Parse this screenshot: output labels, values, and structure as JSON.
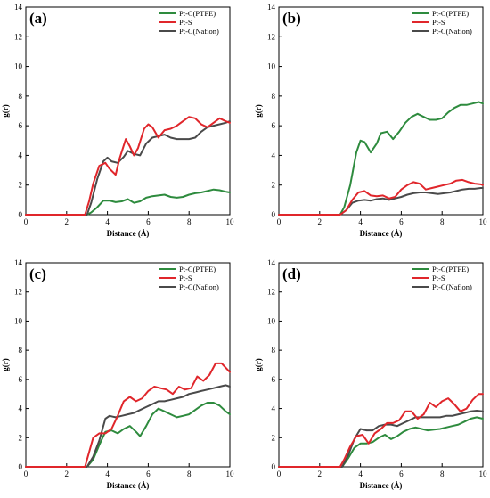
{
  "colors": {
    "ptfe": "#2e8b3e",
    "pts": "#e0262b",
    "nafion": "#4a4a4a"
  },
  "chart_data": [
    {
      "type": "line",
      "panel_label": "(a)",
      "xlabel": "Distance (Å)",
      "ylabel": "g(r)",
      "xlim": [
        0,
        10
      ],
      "ylim": [
        0,
        14
      ],
      "xticks": [
        "0",
        "2",
        "4",
        "6",
        "8",
        "10"
      ],
      "yticks": [
        "0",
        "2",
        "4",
        "6",
        "8",
        "10",
        "12",
        "14"
      ],
      "legend": "top-right",
      "series": [
        {
          "name": "Pt-C(PTFE)",
          "color_key": "ptfe",
          "x": [
            0,
            3.0,
            3.2,
            3.5,
            3.8,
            4.1,
            4.4,
            4.7,
            5.0,
            5.3,
            5.6,
            5.9,
            6.2,
            6.5,
            6.8,
            7.1,
            7.4,
            7.7,
            8.0,
            8.3,
            8.6,
            8.9,
            9.2,
            9.5,
            9.8,
            10.0
          ],
          "y": [
            0,
            0,
            0.15,
            0.5,
            0.95,
            0.95,
            0.85,
            0.9,
            1.05,
            0.8,
            0.9,
            1.15,
            1.25,
            1.3,
            1.35,
            1.2,
            1.15,
            1.2,
            1.35,
            1.45,
            1.5,
            1.6,
            1.7,
            1.65,
            1.55,
            1.5
          ]
        },
        {
          "name": "Pt-S",
          "color_key": "pts",
          "x": [
            0,
            2.9,
            3.1,
            3.3,
            3.6,
            3.9,
            4.1,
            4.4,
            4.6,
            4.9,
            5.1,
            5.3,
            5.5,
            5.8,
            6.0,
            6.2,
            6.5,
            6.8,
            7.1,
            7.4,
            7.7,
            8.0,
            8.3,
            8.6,
            8.9,
            9.2,
            9.5,
            9.8,
            10.0
          ],
          "y": [
            0,
            0,
            0.9,
            2.1,
            3.3,
            3.5,
            3.1,
            2.7,
            3.8,
            5.1,
            4.6,
            4.0,
            4.5,
            5.8,
            6.1,
            5.9,
            5.2,
            5.7,
            5.8,
            6.0,
            6.3,
            6.6,
            6.5,
            6.1,
            5.9,
            6.2,
            6.5,
            6.3,
            6.2
          ]
        },
        {
          "name": "Pt-C(Nafion)",
          "color_key": "nafion",
          "x": [
            0,
            3.0,
            3.2,
            3.5,
            3.8,
            4.0,
            4.2,
            4.5,
            4.8,
            5.0,
            5.3,
            5.6,
            5.9,
            6.2,
            6.5,
            6.8,
            7.1,
            7.4,
            7.7,
            8.0,
            8.3,
            8.6,
            8.9,
            9.2,
            9.5,
            9.8,
            10.0
          ],
          "y": [
            0,
            0,
            0.8,
            2.4,
            3.6,
            3.85,
            3.6,
            3.5,
            3.9,
            4.3,
            4.1,
            4.0,
            4.8,
            5.2,
            5.3,
            5.4,
            5.2,
            5.1,
            5.1,
            5.1,
            5.2,
            5.6,
            5.9,
            6.0,
            6.1,
            6.2,
            6.3
          ]
        }
      ]
    },
    {
      "type": "line",
      "panel_label": "(b)",
      "xlabel": "Distance (Å)",
      "ylabel": "g(r)",
      "xlim": [
        0,
        10
      ],
      "ylim": [
        0,
        14
      ],
      "xticks": [
        "0",
        "2",
        "4",
        "6",
        "8",
        "10"
      ],
      "yticks": [
        "0",
        "2",
        "4",
        "6",
        "8",
        "10",
        "12",
        "14"
      ],
      "legend": "top-right",
      "series": [
        {
          "name": "Pt-C(PTFE)",
          "color_key": "ptfe",
          "x": [
            0,
            3.0,
            3.2,
            3.5,
            3.8,
            4.0,
            4.2,
            4.5,
            4.8,
            5.0,
            5.3,
            5.6,
            5.9,
            6.2,
            6.5,
            6.8,
            7.1,
            7.4,
            7.7,
            8.0,
            8.3,
            8.6,
            8.9,
            9.2,
            9.5,
            9.8,
            10.0
          ],
          "y": [
            0,
            0,
            0.5,
            2.0,
            4.2,
            5.0,
            4.9,
            4.2,
            4.8,
            5.5,
            5.6,
            5.1,
            5.6,
            6.2,
            6.6,
            6.8,
            6.6,
            6.4,
            6.4,
            6.5,
            6.9,
            7.2,
            7.4,
            7.4,
            7.5,
            7.6,
            7.5
          ]
        },
        {
          "name": "Pt-S",
          "color_key": "pts",
          "x": [
            0,
            3.0,
            3.3,
            3.6,
            3.9,
            4.2,
            4.5,
            4.8,
            5.1,
            5.4,
            5.7,
            6.0,
            6.3,
            6.6,
            6.9,
            7.2,
            7.5,
            7.8,
            8.1,
            8.4,
            8.7,
            9.0,
            9.3,
            9.6,
            9.9,
            10.0
          ],
          "y": [
            0,
            0,
            0.3,
            1.0,
            1.5,
            1.6,
            1.3,
            1.25,
            1.3,
            1.1,
            1.2,
            1.7,
            2.0,
            2.2,
            2.1,
            1.7,
            1.8,
            1.9,
            2.0,
            2.1,
            2.3,
            2.35,
            2.2,
            2.1,
            2.05,
            2.0
          ]
        },
        {
          "name": "Pt-C(Nafion)",
          "color_key": "nafion",
          "x": [
            0,
            3.0,
            3.3,
            3.6,
            3.9,
            4.2,
            4.5,
            4.8,
            5.1,
            5.4,
            5.7,
            6.0,
            6.3,
            6.6,
            6.9,
            7.2,
            7.5,
            7.8,
            8.1,
            8.4,
            8.7,
            9.0,
            9.3,
            9.6,
            9.9,
            10.0
          ],
          "y": [
            0,
            0,
            0.3,
            0.8,
            0.95,
            1.0,
            0.95,
            1.05,
            1.1,
            1.0,
            1.1,
            1.2,
            1.35,
            1.45,
            1.5,
            1.5,
            1.45,
            1.4,
            1.45,
            1.5,
            1.6,
            1.7,
            1.75,
            1.75,
            1.8,
            1.8
          ]
        }
      ]
    },
    {
      "type": "line",
      "panel_label": "(c)",
      "xlabel": "Distance (Å)",
      "ylabel": "g(r)",
      "xlim": [
        0,
        10
      ],
      "ylim": [
        0,
        14
      ],
      "xticks": [
        "0",
        "2",
        "4",
        "6",
        "8",
        "10"
      ],
      "yticks": [
        "0",
        "2",
        "4",
        "6",
        "8",
        "10",
        "12",
        "14"
      ],
      "legend": "top-right",
      "series": [
        {
          "name": "Pt-C(PTFE)",
          "color_key": "ptfe",
          "x": [
            0,
            3.0,
            3.3,
            3.6,
            3.9,
            4.2,
            4.5,
            4.8,
            5.1,
            5.4,
            5.6,
            5.9,
            6.2,
            6.5,
            6.8,
            7.1,
            7.4,
            7.7,
            8.0,
            8.3,
            8.6,
            8.9,
            9.2,
            9.5,
            9.8,
            10.0
          ],
          "y": [
            0,
            0,
            0.5,
            1.5,
            2.4,
            2.5,
            2.3,
            2.6,
            2.8,
            2.4,
            2.1,
            2.8,
            3.6,
            4.0,
            3.8,
            3.6,
            3.4,
            3.5,
            3.6,
            3.9,
            4.2,
            4.4,
            4.4,
            4.2,
            3.8,
            3.6
          ]
        },
        {
          "name": "Pt-S",
          "color_key": "pts",
          "x": [
            0,
            2.9,
            3.1,
            3.3,
            3.6,
            3.9,
            4.2,
            4.5,
            4.8,
            5.1,
            5.4,
            5.7,
            6.0,
            6.3,
            6.6,
            6.9,
            7.2,
            7.5,
            7.8,
            8.1,
            8.4,
            8.7,
            9.0,
            9.3,
            9.6,
            9.8,
            10.0
          ],
          "y": [
            0,
            0,
            1.0,
            2.0,
            2.3,
            2.3,
            2.6,
            3.5,
            4.5,
            4.8,
            4.5,
            4.7,
            5.2,
            5.5,
            5.4,
            5.3,
            5.0,
            5.5,
            5.3,
            5.4,
            6.2,
            5.9,
            6.3,
            7.1,
            7.1,
            6.8,
            6.5
          ]
        },
        {
          "name": "Pt-C(Nafion)",
          "color_key": "nafion",
          "x": [
            0,
            3.0,
            3.3,
            3.6,
            3.9,
            4.1,
            4.4,
            4.7,
            5.0,
            5.3,
            5.6,
            5.9,
            6.2,
            6.5,
            6.8,
            7.1,
            7.4,
            7.7,
            8.0,
            8.3,
            8.6,
            8.9,
            9.2,
            9.5,
            9.8,
            10.0
          ],
          "y": [
            0,
            0,
            0.7,
            1.8,
            3.3,
            3.5,
            3.4,
            3.5,
            3.6,
            3.7,
            3.9,
            4.1,
            4.3,
            4.5,
            4.5,
            4.6,
            4.7,
            4.8,
            5.0,
            5.1,
            5.2,
            5.3,
            5.4,
            5.5,
            5.6,
            5.5
          ]
        }
      ]
    },
    {
      "type": "line",
      "panel_label": "(d)",
      "xlabel": "Distance (Å)",
      "ylabel": "g(r)",
      "xlim": [
        0,
        10
      ],
      "ylim": [
        0,
        14
      ],
      "xticks": [
        "0",
        "2",
        "4",
        "6",
        "8",
        "10"
      ],
      "yticks": [
        "0",
        "2",
        "4",
        "6",
        "8",
        "10",
        "12",
        "14"
      ],
      "legend": "top-right",
      "series": [
        {
          "name": "Pt-C(PTFE)",
          "color_key": "ptfe",
          "x": [
            0,
            3.1,
            3.4,
            3.7,
            4.0,
            4.3,
            4.6,
            4.9,
            5.2,
            5.5,
            5.8,
            6.1,
            6.4,
            6.7,
            7.0,
            7.3,
            7.6,
            7.9,
            8.2,
            8.5,
            8.8,
            9.1,
            9.4,
            9.7,
            10.0
          ],
          "y": [
            0,
            0,
            0.6,
            1.3,
            1.6,
            1.6,
            1.7,
            2.0,
            2.2,
            1.9,
            2.1,
            2.4,
            2.6,
            2.7,
            2.6,
            2.5,
            2.55,
            2.6,
            2.7,
            2.8,
            2.9,
            3.1,
            3.3,
            3.4,
            3.3
          ]
        },
        {
          "name": "Pt-S",
          "color_key": "pts",
          "x": [
            0,
            3.0,
            3.2,
            3.5,
            3.8,
            4.1,
            4.4,
            4.7,
            5.0,
            5.3,
            5.6,
            5.9,
            6.2,
            6.5,
            6.8,
            7.1,
            7.4,
            7.7,
            8.0,
            8.3,
            8.6,
            8.9,
            9.2,
            9.5,
            9.8,
            10.0
          ],
          "y": [
            0,
            0,
            0.5,
            1.4,
            2.1,
            2.2,
            1.6,
            2.3,
            2.6,
            3.0,
            3.0,
            3.2,
            3.8,
            3.8,
            3.3,
            3.6,
            4.4,
            4.1,
            4.5,
            4.7,
            4.3,
            3.8,
            4.0,
            4.6,
            5.0,
            5.0
          ]
        },
        {
          "name": "Pt-C(Nafion)",
          "color_key": "nafion",
          "x": [
            0,
            3.1,
            3.4,
            3.7,
            4.0,
            4.3,
            4.6,
            4.9,
            5.2,
            5.5,
            5.8,
            6.1,
            6.4,
            6.7,
            7.0,
            7.3,
            7.6,
            7.9,
            8.2,
            8.5,
            8.8,
            9.1,
            9.4,
            9.7,
            10.0
          ],
          "y": [
            0,
            0,
            0.8,
            1.9,
            2.6,
            2.5,
            2.5,
            2.8,
            2.9,
            2.9,
            2.8,
            3.0,
            3.2,
            3.4,
            3.4,
            3.4,
            3.4,
            3.4,
            3.5,
            3.5,
            3.6,
            3.7,
            3.8,
            3.85,
            3.8
          ]
        }
      ]
    }
  ]
}
